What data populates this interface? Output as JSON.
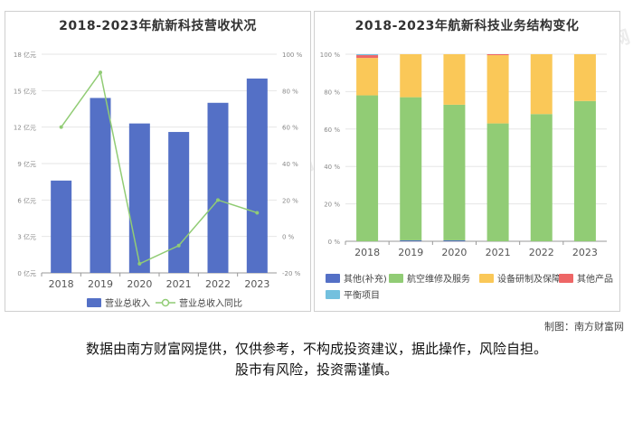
{
  "watermark": {
    "text": "南方财富网",
    "colors": {
      "watermark": "#d9d9d9"
    }
  },
  "credit": "制图：南方财富网",
  "disclaimer": {
    "line1": "数据由南方财富网提供，仅供参考，不构成投资建议，据此操作，风险自担。",
    "line2": "股市有风险，投资需谨慎。"
  },
  "chart_data": [
    {
      "type": "bar",
      "title": "2018-2023年航新科技营收状况",
      "categories": [
        "2018",
        "2019",
        "2020",
        "2021",
        "2022",
        "2023"
      ],
      "series": [
        {
          "name": "营业总收入",
          "type": "bar",
          "axis": "left",
          "color": "#5470c6",
          "values": [
            7.6,
            14.4,
            12.3,
            11.6,
            14.0,
            16.0
          ]
        },
        {
          "name": "营业总收入同比",
          "type": "line",
          "axis": "right",
          "color": "#91cc75",
          "values": [
            60,
            90,
            -15,
            -5,
            20,
            13
          ]
        }
      ],
      "left_axis": {
        "ylim": [
          0,
          18
        ],
        "ticks": [
          0,
          3,
          6,
          9,
          12,
          15,
          18
        ],
        "tick_labels": [
          "0 亿元",
          "3 亿元",
          "6 亿元",
          "9 亿元",
          "12 亿元",
          "15 亿元",
          "18 亿元"
        ]
      },
      "right_axis": {
        "ylim": [
          -20,
          100
        ],
        "ticks": [
          -20,
          0,
          20,
          40,
          60,
          80,
          100
        ],
        "tick_labels": [
          "-20 %",
          "0 %",
          "20 %",
          "40 %",
          "60 %",
          "80 %",
          "100 %"
        ]
      },
      "legend": "bottom",
      "grid": true
    },
    {
      "type": "bar",
      "stacked": true,
      "title": "2018-2023年航新科技业务结构变化",
      "categories": [
        "2018",
        "2019",
        "2020",
        "2021",
        "2022",
        "2023"
      ],
      "series": [
        {
          "name": "其他(补充)",
          "color": "#5470c6",
          "values": [
            0,
            0.5,
            0.5,
            0,
            0,
            0
          ]
        },
        {
          "name": "航空维修及服务",
          "color": "#91cc75",
          "values": [
            78,
            76.5,
            72.5,
            63,
            68,
            75
          ]
        },
        {
          "name": "设备研制及保障",
          "color": "#fac858",
          "values": [
            20,
            23,
            27,
            36.5,
            32,
            25
          ]
        },
        {
          "name": "其他产品",
          "color": "#ee6666",
          "values": [
            1.5,
            0,
            0,
            0.5,
            0,
            0
          ]
        },
        {
          "name": "平衡项目",
          "color": "#73c0de",
          "values": [
            0.5,
            0,
            0,
            0,
            0,
            0
          ]
        }
      ],
      "yaxis": {
        "ylim": [
          0,
          100
        ],
        "ticks": [
          0,
          20,
          40,
          60,
          80,
          100
        ],
        "tick_labels": [
          "0 %",
          "20 %",
          "40 %",
          "60 %",
          "80 %",
          "100 %"
        ]
      },
      "legend": "bottom",
      "grid": true
    }
  ]
}
